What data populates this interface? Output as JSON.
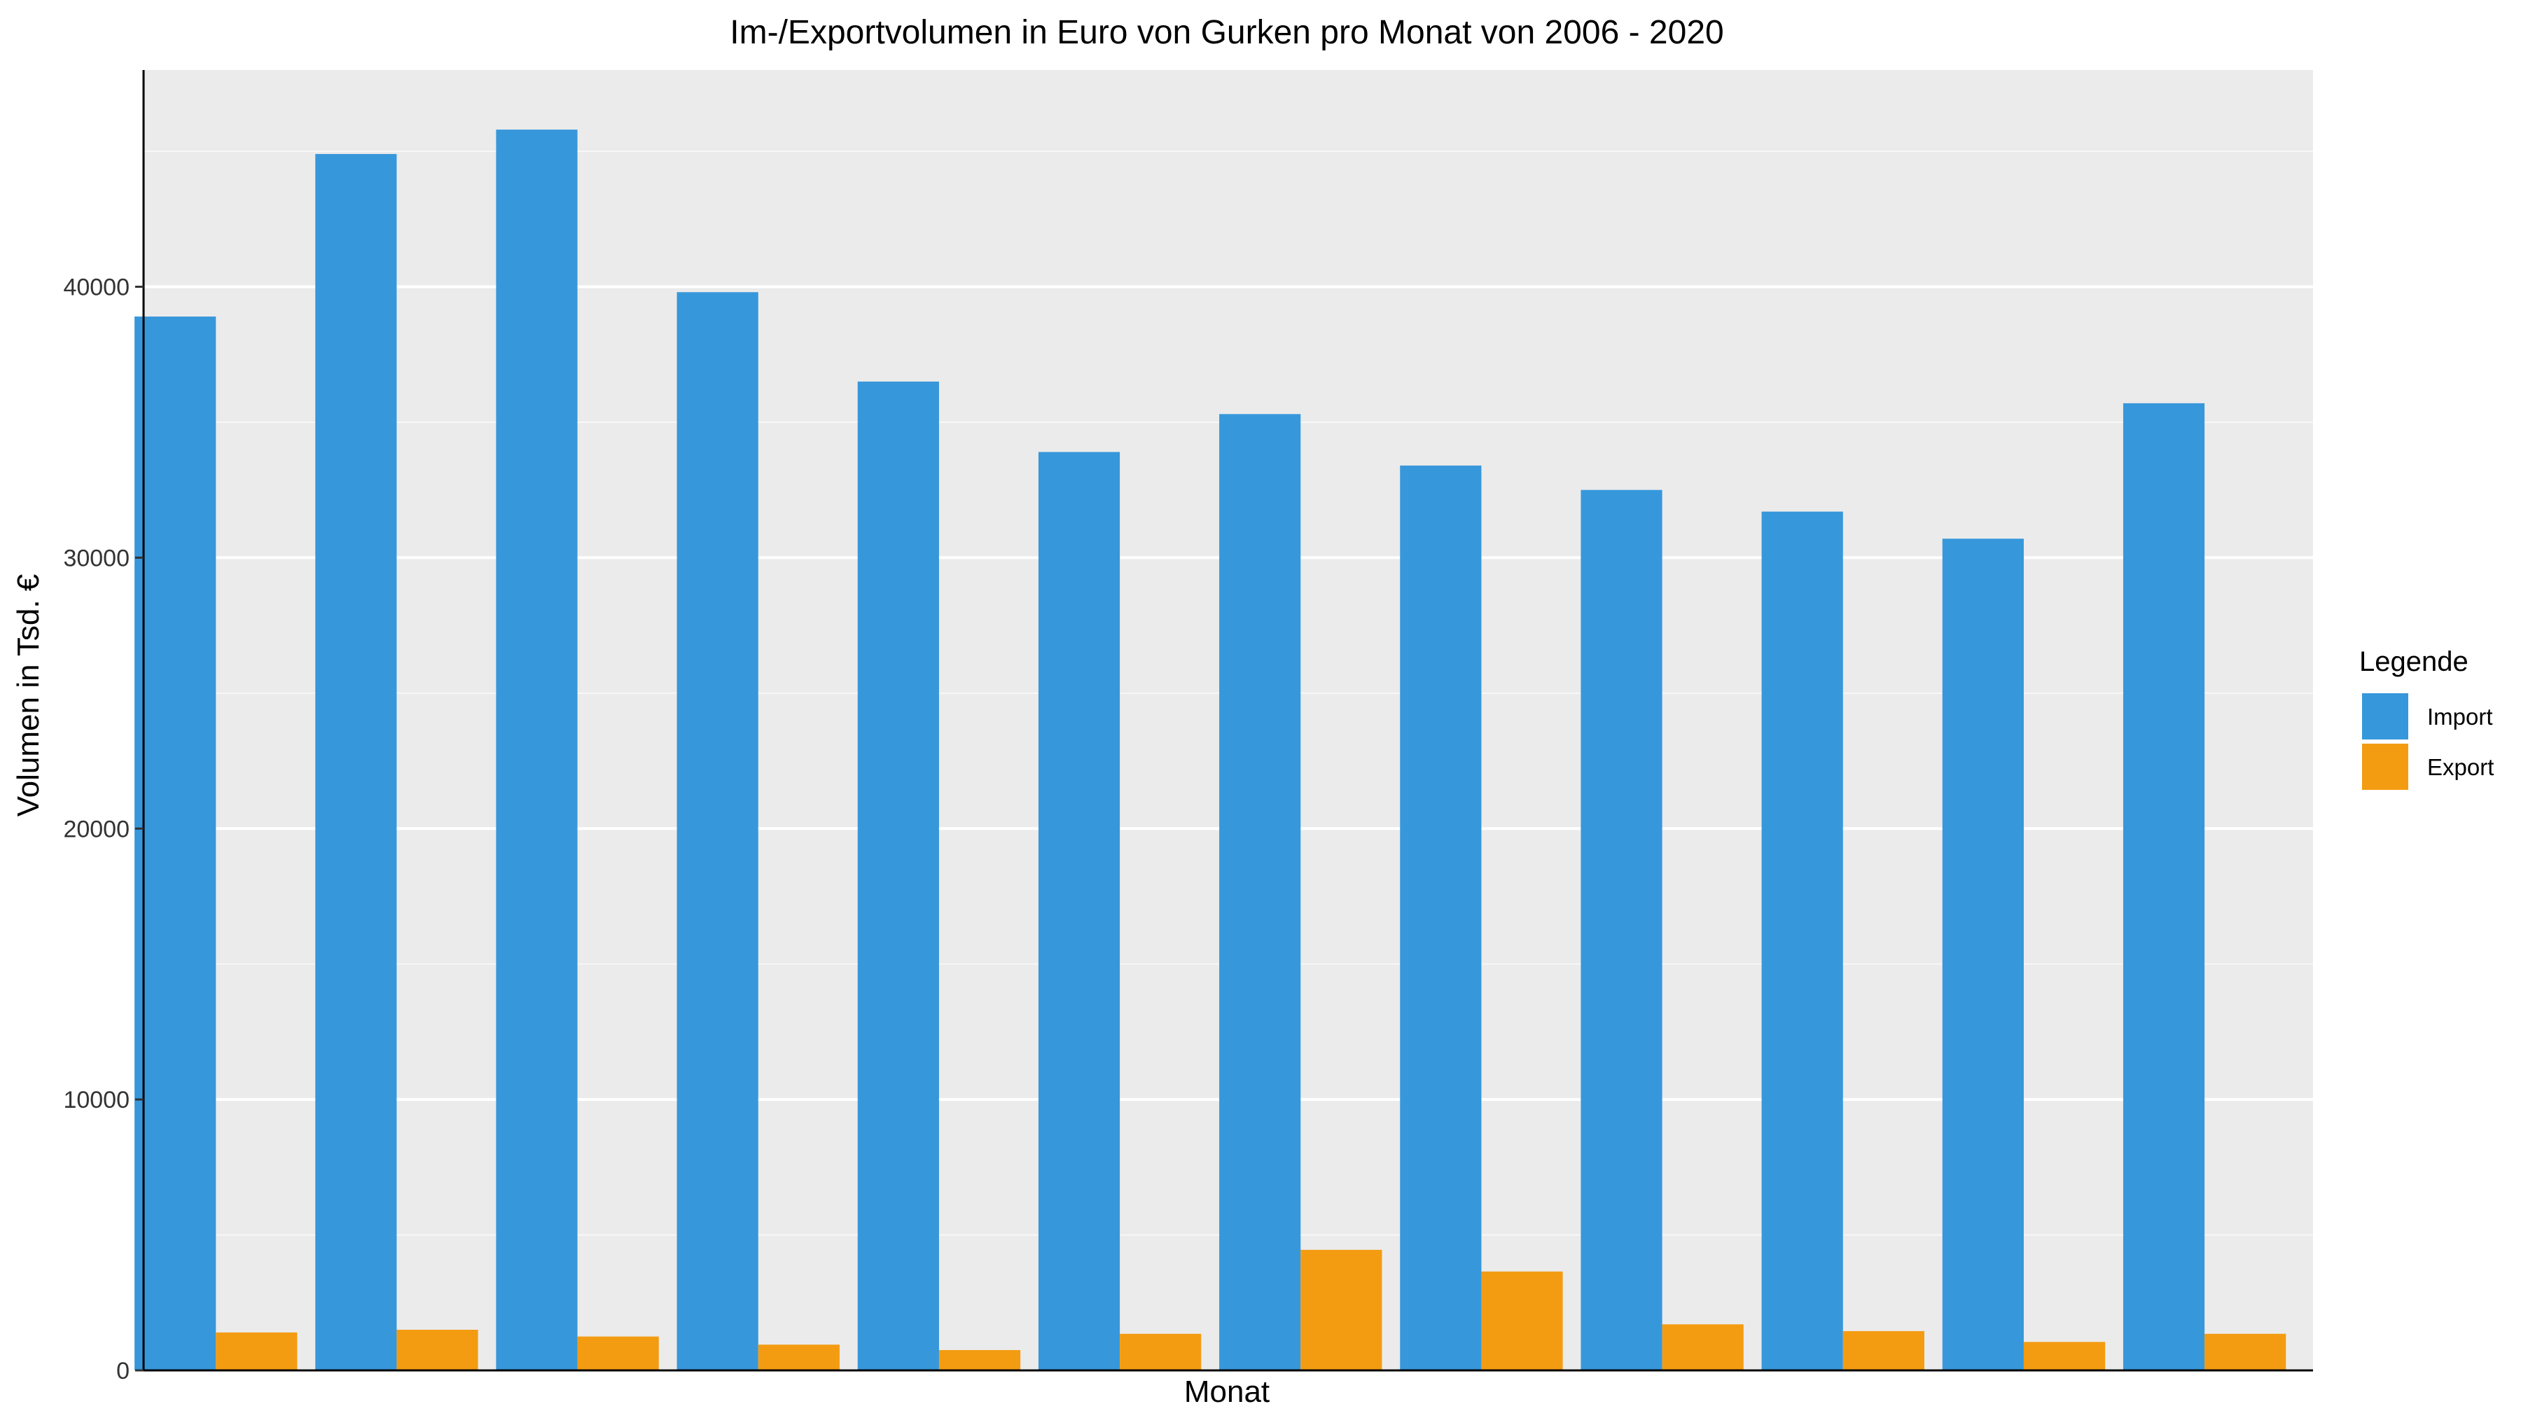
{
  "chart_data": {
    "type": "bar",
    "title": "Im-/Exportvolumen in Euro von Gurken pro Monat von 2006 - 2020",
    "xlabel": "Monat",
    "ylabel": "Volumen in Tsd. €",
    "ylim": [
      0,
      48000
    ],
    "yticks": [
      0,
      10000,
      20000,
      30000,
      40000
    ],
    "grid": true,
    "legend_position": "right",
    "categories": [
      "",
      "",
      "",
      "",
      "",
      "",
      "",
      "",
      "",
      "",
      "",
      ""
    ],
    "series": [
      {
        "name": "Import",
        "color": "#3797db",
        "values": [
          38900,
          44900,
          45800,
          39800,
          36500,
          33900,
          35300,
          33400,
          32500,
          31700,
          30700,
          35700
        ]
      },
      {
        "name": "Export",
        "color": "#f39c12",
        "values": [
          1400,
          1500,
          1250,
          950,
          750,
          1350,
          4450,
          3650,
          1700,
          1450,
          1050,
          1350
        ]
      }
    ]
  },
  "legend": {
    "title": "Legende"
  }
}
